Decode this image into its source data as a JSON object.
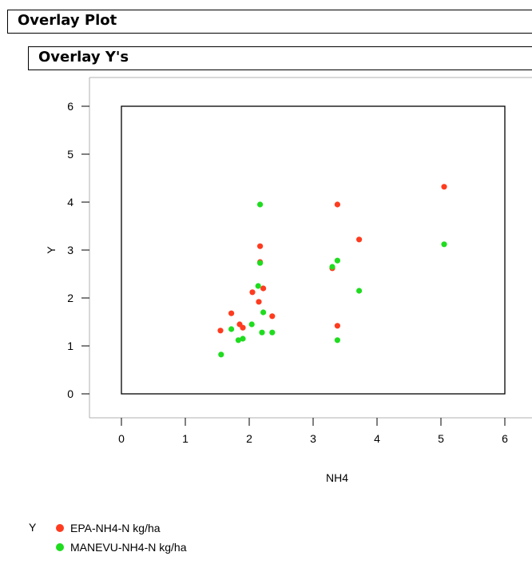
{
  "header": {
    "outer_title": "Overlay Plot",
    "inner_title": "Overlay Y's"
  },
  "legend": {
    "title": "Y"
  },
  "chart_data": {
    "type": "scatter",
    "title": "",
    "xlabel": "NH4",
    "ylabel": "Y",
    "xlim": [
      -0.5,
      6.5
    ],
    "ylim": [
      -0.5,
      6.6
    ],
    "xticks": [
      0,
      1,
      2,
      3,
      4,
      5,
      6
    ],
    "yticks": [
      0,
      1,
      2,
      3,
      4,
      5,
      6
    ],
    "frame": [
      0,
      6,
      0,
      6
    ],
    "grid": false,
    "legend_position": "bottom-left",
    "series": [
      {
        "name": "EPA-NH4-N kg/ha",
        "color": "#ff3b1f",
        "points": [
          [
            1.55,
            1.32
          ],
          [
            1.72,
            1.68
          ],
          [
            1.85,
            1.45
          ],
          [
            1.9,
            1.38
          ],
          [
            2.05,
            2.12
          ],
          [
            2.15,
            1.92
          ],
          [
            2.17,
            3.08
          ],
          [
            2.17,
            2.75
          ],
          [
            2.22,
            2.2
          ],
          [
            2.36,
            1.62
          ],
          [
            3.3,
            2.62
          ],
          [
            3.38,
            3.95
          ],
          [
            3.38,
            1.42
          ],
          [
            3.72,
            3.22
          ],
          [
            5.05,
            4.32
          ]
        ]
      },
      {
        "name": "MANEVU-NH4-N kg/ha",
        "color": "#1fdc1f",
        "points": [
          [
            1.56,
            0.82
          ],
          [
            1.72,
            1.35
          ],
          [
            1.83,
            1.12
          ],
          [
            1.9,
            1.15
          ],
          [
            2.04,
            1.45
          ],
          [
            2.14,
            2.25
          ],
          [
            2.17,
            3.95
          ],
          [
            2.17,
            2.73
          ],
          [
            2.2,
            1.28
          ],
          [
            2.22,
            1.7
          ],
          [
            2.36,
            1.28
          ],
          [
            3.3,
            2.65
          ],
          [
            3.38,
            2.78
          ],
          [
            3.38,
            1.12
          ],
          [
            3.72,
            2.15
          ],
          [
            5.05,
            3.12
          ]
        ]
      }
    ]
  }
}
